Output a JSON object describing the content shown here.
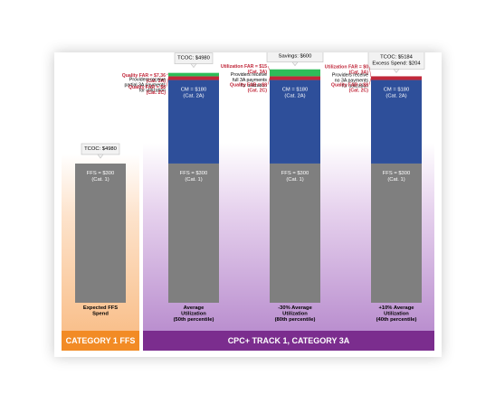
{
  "chart_data": {
    "type": "bar",
    "stacked": true,
    "ylim": [
      0,
      520
    ],
    "bars": [
      {
        "xlabel": [
          "Expected FFS",
          "Spend"
        ],
        "tcoc": [
          "TCOC: $4980"
        ],
        "segments": [
          {
            "value": 300,
            "label": [
              "FFS = $300",
              "(Cat. 1)"
            ],
            "color": "#7f7f7f"
          }
        ]
      },
      {
        "xlabel": [
          "Average",
          "Utilization",
          "(50th percentile)"
        ],
        "tcoc": [
          "TCOC: $4980"
        ],
        "segments": [
          {
            "value": 300,
            "label": [
              "FFS = $300",
              "(Cat. 1)"
            ],
            "color": "#7f7f7f"
          },
          {
            "value": 180,
            "label": [
              "CM = $180",
              "(Cat. 2A)"
            ],
            "color": "#2e4f9a"
          },
          {
            "value": 8,
            "label": [],
            "color": "#c0273a"
          },
          {
            "value": 7.36,
            "label": [],
            "color": "#2ebd59"
          }
        ],
        "annotations": [
          {
            "lines": [
              "Quality FAR = $7.36",
              "(Cat. 3A)"
            ],
            "color": "#c0273a",
            "at": 487
          },
          {
            "lines": [
              "Providers receive",
              "partial 3A payments",
              "for utilization"
            ],
            "color": "#000000",
            "at": 478
          },
          {
            "lines": [
              "Quality FAR = $8",
              "(Cat. 2C)"
            ],
            "color": "#c0273a",
            "at": 462
          }
        ]
      },
      {
        "xlabel": [
          "-30% Average",
          "Utilization",
          "(80th percentile)"
        ],
        "tcoc": [
          "TCOC: $4380",
          "Savings: $600"
        ],
        "segments": [
          {
            "value": 300,
            "label": [
              "FFS = $300",
              "(Cat. 1)"
            ],
            "color": "#7f7f7f"
          },
          {
            "value": 180,
            "label": [
              "CM = $180",
              "(Cat. 2A)"
            ],
            "color": "#2e4f9a"
          },
          {
            "value": 8,
            "label": [],
            "color": "#c0273a"
          },
          {
            "value": 15,
            "label": [],
            "color": "#2ebd59"
          }
        ],
        "annotations": [
          {
            "lines": [
              "Utilization FAR = $15",
              "(Cat. 3A)"
            ],
            "color": "#c0273a",
            "at": 506
          },
          {
            "lines": [
              "Providers receive",
              "full 3A payments",
              "for utilization"
            ],
            "color": "#000000",
            "at": 489
          },
          {
            "lines": [
              "Quality FAR = $8",
              "(Cat. 2C)"
            ],
            "color": "#c0273a",
            "at": 466
          }
        ]
      },
      {
        "xlabel": [
          "+10% Average",
          "Utilization",
          "(40th percentile)"
        ],
        "tcoc": [
          "TCOC: $5184",
          "Excess Spend: $204"
        ],
        "segments": [
          {
            "value": 300,
            "label": [
              "FFS = $300",
              "(Cat. 1)"
            ],
            "color": "#7f7f7f"
          },
          {
            "value": 180,
            "label": [
              "CM = $180",
              "(Cat. 2A)"
            ],
            "color": "#2e4f9a"
          },
          {
            "value": 8,
            "label": [],
            "color": "#c0273a"
          }
        ],
        "annotations": [
          {
            "lines": [
              "Utilization FAR = $0",
              "(Cat. 3A)"
            ],
            "color": "#c0273a",
            "at": 505
          },
          {
            "lines": [
              "Providers receive",
              "no 3A payments",
              "for utilization"
            ],
            "color": "#000000",
            "at": 488
          },
          {
            "lines": [
              "Quality FAR = $8",
              "(Cat. 2C)"
            ],
            "color": "#c0273a",
            "at": 466
          }
        ]
      }
    ],
    "groups": [
      {
        "label": "CATEGORY 1 FFS",
        "color": "#f28b25"
      },
      {
        "label": "CPC+ TRACK 1, CATEGORY 3A",
        "color": "#7b2d8e"
      }
    ]
  }
}
